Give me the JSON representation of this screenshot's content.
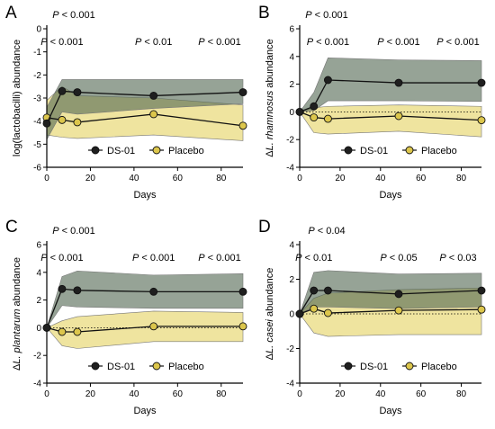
{
  "colors": {
    "ds01_line": "#1f1f1f",
    "ds01_band": "#556b55",
    "placebo_marker": "#dcc64c",
    "placebo_band": "#ecdf8e",
    "axis": "#000000"
  },
  "chart_data": [
    {
      "type": "line",
      "panel": "A",
      "ylabel": "log(lactobacilli) abundance",
      "xlabel": "Days",
      "xlim": [
        0,
        90
      ],
      "ylim": [
        -6,
        0
      ],
      "xticks": [
        "0",
        "20",
        "40",
        "60",
        "80"
      ],
      "yticks": [
        "0",
        "-1",
        "-2",
        "-3",
        "-4",
        "-5",
        "-6"
      ],
      "baseline": null,
      "p_values": [
        {
          "text": "P < 0.001",
          "x": 0,
          "level": 0
        },
        {
          "text": "P < 0.001",
          "x": 7,
          "level": 1
        },
        {
          "text": "P < 0.01",
          "x": 49,
          "level": 1
        },
        {
          "text": "P < 0.001",
          "x": 90,
          "level": 1
        }
      ],
      "legend": {
        "placement": "bottom",
        "entries": [
          "DS-01",
          "Placebo"
        ]
      },
      "series": [
        {
          "name": "DS-01",
          "x": [
            0,
            7,
            14,
            49,
            90
          ],
          "y": [
            -4.1,
            -2.7,
            -2.75,
            -2.9,
            -2.75
          ],
          "lower": [
            -4.8,
            -3.6,
            -3.7,
            -3.45,
            -3.25
          ],
          "upper": [
            -3.4,
            -2.2,
            -2.2,
            -2.2,
            -2.2
          ]
        },
        {
          "name": "Placebo",
          "x": [
            0,
            7,
            14,
            49,
            90
          ],
          "y": [
            -3.85,
            -3.95,
            -4.05,
            -3.7,
            -4.2
          ],
          "lower": [
            -4.6,
            -4.7,
            -4.75,
            -4.6,
            -4.85
          ],
          "upper": [
            -3.1,
            -2.5,
            -2.9,
            -3.0,
            -3.3
          ]
        }
      ]
    },
    {
      "type": "line",
      "panel": "B",
      "ylabel": "ΔL. rhamnosus abundance",
      "xlabel": "Days",
      "xlim": [
        0,
        90
      ],
      "ylim": [
        -4,
        6
      ],
      "xticks": [
        "0",
        "20",
        "40",
        "60",
        "80"
      ],
      "yticks": [
        "6",
        "4",
        "2",
        "0",
        "-2",
        "-4"
      ],
      "baseline": 0,
      "p_values": [
        {
          "text": "P < 0.001",
          "x": 0,
          "level": 0
        },
        {
          "text": "P < 0.001",
          "x": 14,
          "level": 1
        },
        {
          "text": "P < 0.001",
          "x": 49,
          "level": 1
        },
        {
          "text": "P < 0.001",
          "x": 90,
          "level": 1
        }
      ],
      "legend": {
        "placement": "bottom",
        "entries": [
          "DS-01",
          "Placebo"
        ]
      },
      "series": [
        {
          "name": "DS-01",
          "x": [
            0,
            7,
            14,
            49,
            90
          ],
          "y": [
            0,
            0.4,
            2.3,
            2.1,
            2.1
          ],
          "lower": [
            0,
            0.1,
            0.8,
            0.8,
            0.75
          ],
          "upper": [
            0,
            1.4,
            3.9,
            3.75,
            3.7
          ]
        },
        {
          "name": "Placebo",
          "x": [
            0,
            7,
            14,
            49,
            90
          ],
          "y": [
            0,
            -0.4,
            -0.5,
            -0.3,
            -0.6
          ],
          "lower": [
            0,
            -1.5,
            -1.6,
            -1.4,
            -1.8
          ],
          "upper": [
            0,
            0.3,
            0.4,
            0.5,
            0.4
          ]
        }
      ]
    },
    {
      "type": "line",
      "panel": "C",
      "ylabel": "ΔL. plantarum abundance",
      "xlabel": "Days",
      "xlim": [
        0,
        90
      ],
      "ylim": [
        -4,
        6
      ],
      "xticks": [
        "0",
        "20",
        "40",
        "60",
        "80"
      ],
      "yticks": [
        "6",
        "4",
        "2",
        "0",
        "-2",
        "-4"
      ],
      "baseline": 0,
      "p_values": [
        {
          "text": "P < 0.001",
          "x": 0,
          "level": 0
        },
        {
          "text": "P < 0.001",
          "x": 7,
          "level": 1
        },
        {
          "text": "P < 0.001",
          "x": 49,
          "level": 1
        },
        {
          "text": "P < 0.001",
          "x": 90,
          "level": 1
        }
      ],
      "legend": {
        "placement": "bottom",
        "entries": [
          "DS-01",
          "Placebo"
        ]
      },
      "series": [
        {
          "name": "DS-01",
          "x": [
            0,
            7,
            14,
            49,
            90
          ],
          "y": [
            0,
            2.8,
            2.7,
            2.6,
            2.6
          ],
          "lower": [
            0,
            1.6,
            1.5,
            1.4,
            1.4
          ],
          "upper": [
            0,
            3.7,
            4.1,
            3.8,
            3.9
          ]
        },
        {
          "name": "Placebo",
          "x": [
            0,
            7,
            14,
            49,
            90
          ],
          "y": [
            0,
            -0.3,
            -0.3,
            0.1,
            0.1
          ],
          "lower": [
            0,
            -1.3,
            -1.5,
            -1.0,
            -1.0
          ],
          "upper": [
            0,
            0.5,
            0.8,
            1.2,
            1.1
          ]
        }
      ]
    },
    {
      "type": "line",
      "panel": "D",
      "ylabel": "ΔL. casei abundance",
      "xlabel": "Days",
      "xlim": [
        0,
        90
      ],
      "ylim": [
        -4,
        4
      ],
      "xticks": [
        "0",
        "20",
        "40",
        "60",
        "80"
      ],
      "yticks": [
        "4",
        "2",
        "0",
        "-2",
        "-4"
      ],
      "baseline": 0,
      "p_values": [
        {
          "text": "P < 0.04",
          "x": 0,
          "level": 0
        },
        {
          "text": "P < 0.01",
          "x": 7,
          "level": 1
        },
        {
          "text": "P < 0.05",
          "x": 49,
          "level": 1
        },
        {
          "text": "P < 0.03",
          "x": 90,
          "level": 1
        }
      ],
      "legend": {
        "placement": "bottom",
        "entries": [
          "DS-01",
          "Placebo"
        ]
      },
      "series": [
        {
          "name": "DS-01",
          "x": [
            0,
            7,
            14,
            49,
            90
          ],
          "y": [
            0,
            1.35,
            1.35,
            1.15,
            1.35
          ],
          "lower": [
            0,
            0.4,
            0.4,
            0.3,
            0.4
          ],
          "upper": [
            0,
            2.4,
            2.5,
            2.3,
            2.35
          ]
        },
        {
          "name": "Placebo",
          "x": [
            0,
            7,
            14,
            49,
            90
          ],
          "y": [
            0,
            0.3,
            0.05,
            0.2,
            0.25
          ],
          "lower": [
            0,
            -1.1,
            -1.3,
            -1.2,
            -1.2
          ],
          "upper": [
            0,
            0.9,
            1.2,
            1.4,
            1.5
          ]
        }
      ]
    }
  ]
}
